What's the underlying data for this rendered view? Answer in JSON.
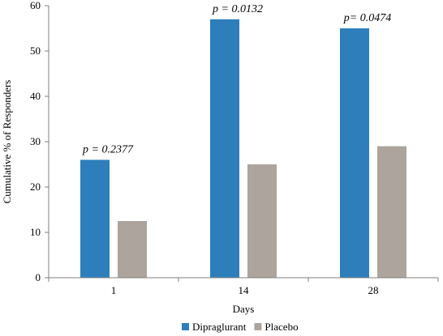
{
  "chart_data": {
    "type": "bar",
    "title": "",
    "xlabel": "Days",
    "ylabel": "Cumulative %  of Responders",
    "categories": [
      "1",
      "14",
      "28"
    ],
    "ylim": [
      0,
      60
    ],
    "yticks": [
      0,
      10,
      20,
      30,
      40,
      50,
      60
    ],
    "grid": false,
    "legend_position": "bottom",
    "series": [
      {
        "name": "Dipraglurant",
        "values": [
          26,
          57,
          55
        ],
        "color": "#2e7ebc"
      },
      {
        "name": "Placebo",
        "values": [
          12.5,
          25,
          29
        ],
        "color": "#aca49d"
      }
    ],
    "annotations": [
      "p = 0.2377",
      "p = 0.0132",
      "p= 0.0474"
    ]
  }
}
